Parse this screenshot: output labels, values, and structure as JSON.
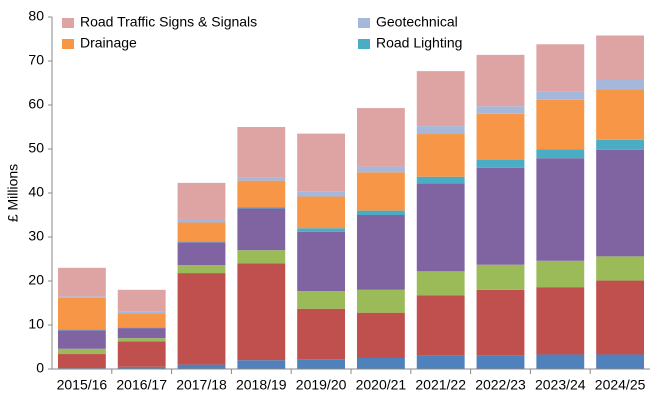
{
  "chart_data": {
    "type": "stacked_bar",
    "y_label": "£ Millions",
    "categories": [
      "2015/16",
      "2016/17",
      "2017/18",
      "2018/19",
      "2019/20",
      "2020/21",
      "2021/22",
      "2022/23",
      "2023/24",
      "2024/25"
    ],
    "series": [
      {
        "color": "#4f81bd",
        "values": [
          0.2,
          0.5,
          1.0,
          2.0,
          2.2,
          2.5,
          3.0,
          3.0,
          3.3,
          3.3
        ]
      },
      {
        "color": "#c0504d",
        "values": [
          3.2,
          5.8,
          20.8,
          22.0,
          11.5,
          10.3,
          13.7,
          15.0,
          15.3,
          16.8
        ]
      },
      {
        "color": "#9bbb59",
        "values": [
          1.2,
          0.7,
          1.8,
          3.0,
          4.0,
          5.2,
          5.5,
          5.7,
          6.0,
          5.5
        ]
      },
      {
        "color": "#8064a2",
        "values": [
          4.2,
          2.3,
          5.2,
          9.5,
          13.5,
          17.0,
          20.0,
          22.0,
          23.3,
          24.2
        ]
      },
      {
        "name": "Road Lighting",
        "color": "#4bacc6",
        "values": [
          0.2,
          0.2,
          0.2,
          0.3,
          0.8,
          1.0,
          1.5,
          1.8,
          2.0,
          2.3
        ]
      },
      {
        "name": "Drainage",
        "color": "#f79646",
        "values": [
          7.2,
          3.2,
          4.3,
          6.0,
          7.2,
          8.7,
          9.7,
          10.5,
          11.3,
          11.5
        ]
      },
      {
        "name": "Geotechnical",
        "color": "#a5b8dc",
        "values": [
          0.3,
          0.4,
          0.8,
          0.7,
          1.2,
          1.3,
          1.8,
          1.7,
          1.8,
          2.2
        ]
      },
      {
        "name": "Road Traffic Signs & Signals",
        "color": "#dea3a3",
        "values": [
          6.5,
          4.9,
          8.2,
          11.5,
          13.1,
          13.3,
          12.5,
          11.7,
          10.8,
          10.0
        ]
      }
    ],
    "ylim": [
      0,
      80
    ],
    "yticks": [
      0,
      10,
      20,
      30,
      40,
      50,
      60,
      70,
      80
    ],
    "grid": false
  }
}
